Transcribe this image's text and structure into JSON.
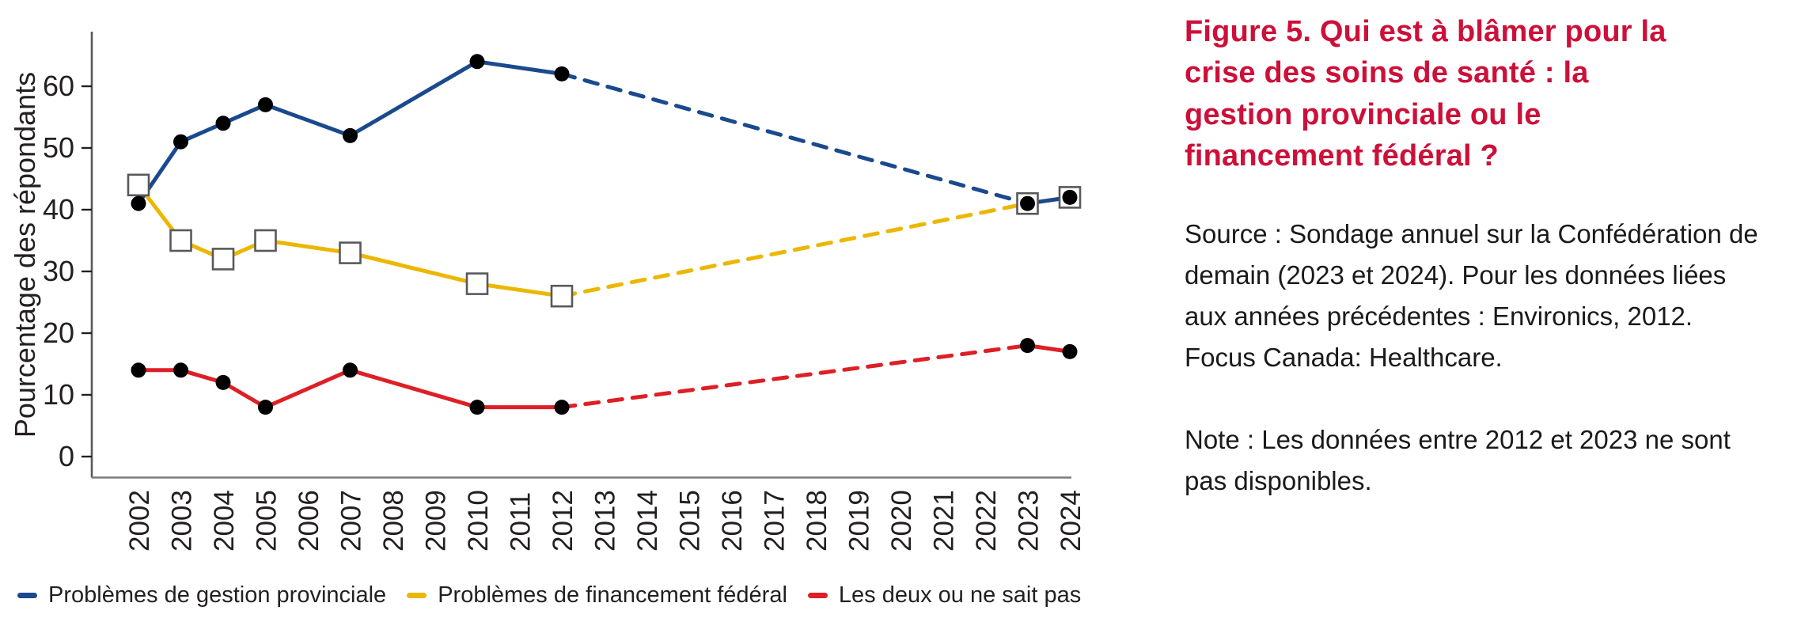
{
  "figure": {
    "title": "Figure 5. Qui est à blâmer pour la crise des soins de santé : la gestion provinciale ou le financement fédéral ?",
    "title_color": "#cd1039",
    "source": "Source : Sondage annuel sur la Confédération de demain (2023 et 2024). Pour les données liées aux années précédentes : Environics, 2012. Focus Canada: Healthcare.",
    "note": "Note : Les données entre 2012 et 2023 ne sont pas disponibles."
  },
  "chart_data": {
    "type": "line",
    "title": "",
    "xlabel": "",
    "ylabel": "Pourcentage des répondants",
    "x_tick_labels": [
      "2002",
      "2003",
      "2004",
      "2005",
      "2006",
      "2007",
      "2008",
      "2009",
      "2010",
      "2011",
      "2012",
      "2013",
      "2014",
      "2015",
      "2016",
      "2017",
      "2018",
      "2019",
      "2020",
      "2021",
      "2022",
      "2023",
      "2024"
    ],
    "y_ticks": [
      0,
      10,
      20,
      30,
      40,
      50,
      60
    ],
    "xlim": [
      2002,
      2024
    ],
    "ylim": [
      0,
      67
    ],
    "grid": false,
    "legend_position": "bottom",
    "gap_note": "Les données entre 2012 et 2023 ne sont pas disponibles : segment en pointillé",
    "dashed_between": [
      2012,
      2023
    ],
    "series": [
      {
        "name": "Problèmes de gestion provinciale",
        "color": "#1a4a8d",
        "marker": "circle",
        "marker_color": "#000000",
        "x": [
          2002,
          2003,
          2004,
          2005,
          2007,
          2010,
          2012,
          2023,
          2024
        ],
        "values": [
          41,
          51,
          54,
          57,
          52,
          64,
          62,
          41,
          42
        ]
      },
      {
        "name": "Problèmes de financement fédéral",
        "color": "#ebb700",
        "marker": "square",
        "marker_color": "#ffffff",
        "x": [
          2002,
          2003,
          2004,
          2005,
          2007,
          2010,
          2012,
          2023,
          2024
        ],
        "values": [
          44,
          35,
          32,
          35,
          33,
          28,
          26,
          41,
          42
        ]
      },
      {
        "name": "Les deux ou ne sait pas",
        "color": "#de1f26",
        "marker": "circle",
        "marker_color": "#000000",
        "x": [
          2002,
          2003,
          2004,
          2005,
          2007,
          2010,
          2012,
          2023,
          2024
        ],
        "values": [
          14,
          14,
          12,
          8,
          14,
          8,
          8,
          18,
          17
        ]
      }
    ]
  }
}
